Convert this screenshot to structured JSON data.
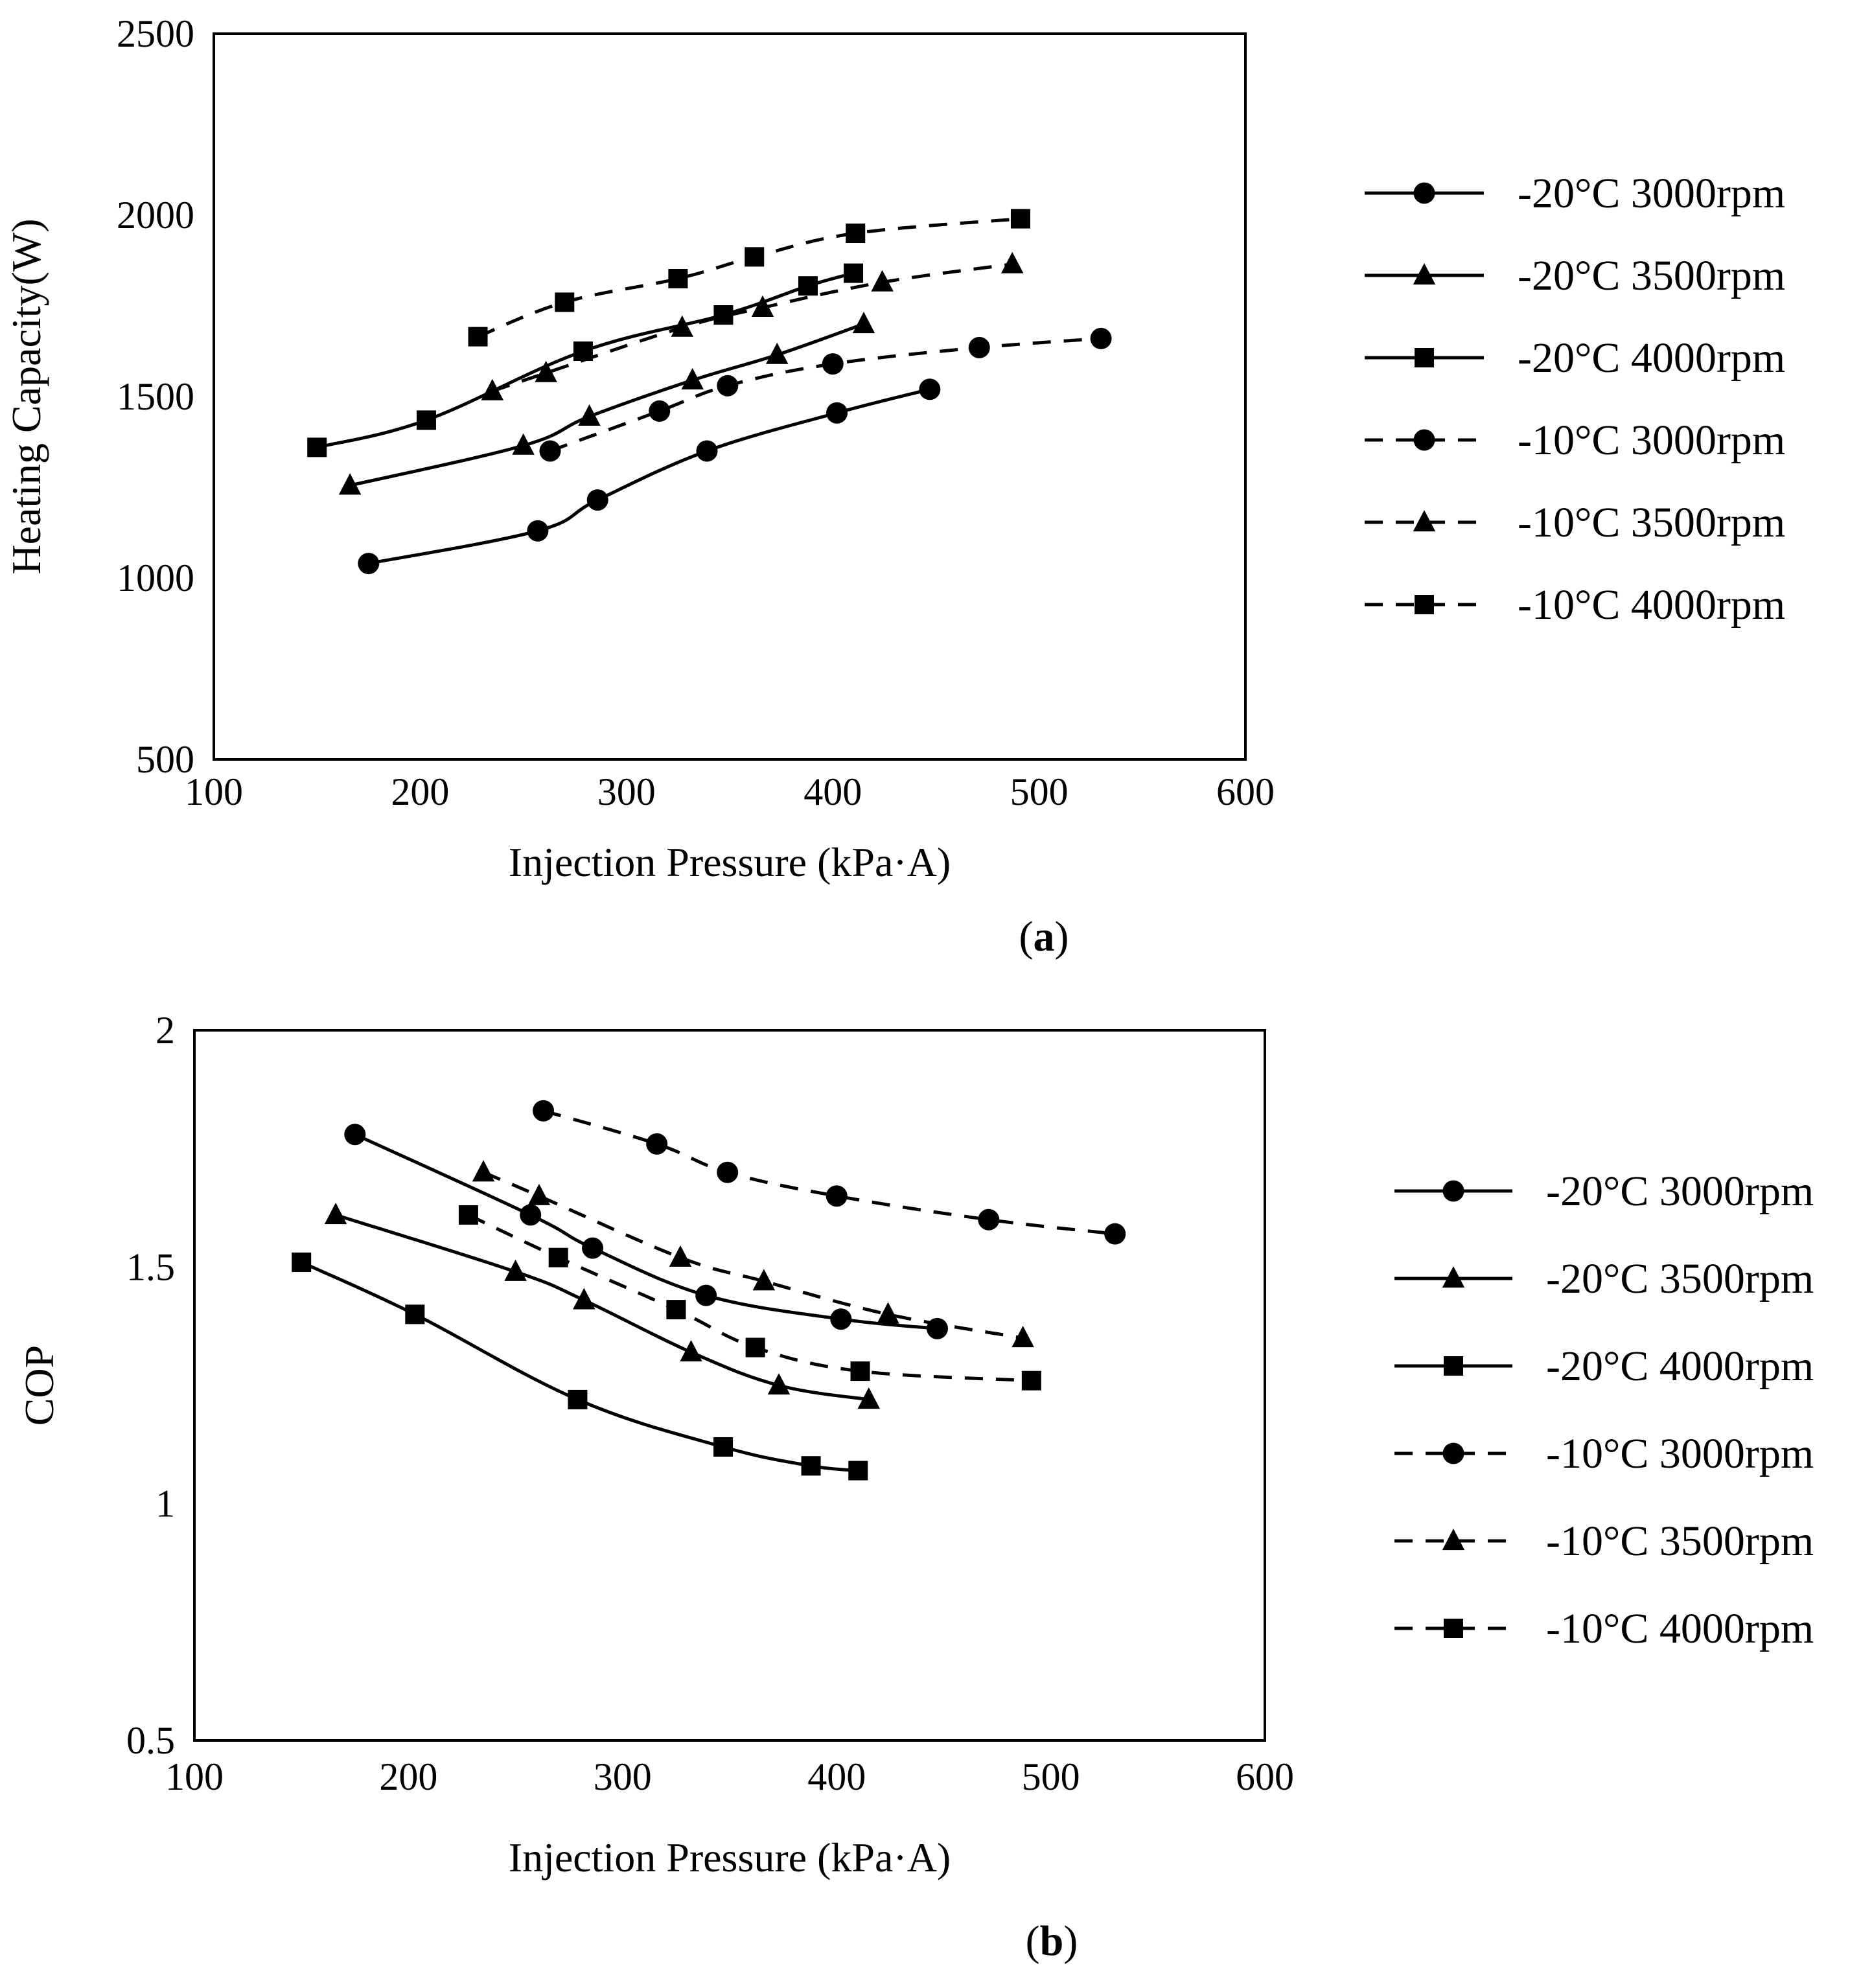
{
  "chart_data": [
    {
      "type": "line",
      "panel_label": "a",
      "xlabel": "Injection Pressure (kPa·A)",
      "ylabel": "Heating Capacity(W)",
      "xlim": [
        100,
        600
      ],
      "ylim": [
        500,
        2500
      ],
      "xticks": [
        100,
        200,
        300,
        400,
        500,
        600
      ],
      "yticks": [
        500,
        1000,
        1500,
        2000,
        2500
      ],
      "grid": false,
      "legend_position": "right",
      "series": [
        {
          "name": "-20°C 3000rpm",
          "line": "solid",
          "marker": "circle",
          "x": [
            175,
            257,
            286,
            339,
            402,
            447
          ],
          "y": [
            1040,
            1130,
            1215,
            1350,
            1455,
            1520
          ]
        },
        {
          "name": "-20°C 3500rpm",
          "line": "solid",
          "marker": "triangle",
          "x": [
            166,
            250,
            282,
            332,
            373,
            415
          ],
          "y": [
            1255,
            1365,
            1445,
            1545,
            1615,
            1700
          ]
        },
        {
          "name": "-20°C 4000rpm",
          "line": "solid",
          "marker": "square",
          "x": [
            150,
            203,
            279,
            347,
            388,
            410
          ],
          "y": [
            1360,
            1435,
            1625,
            1725,
            1805,
            1840
          ]
        },
        {
          "name": "-10°C 3000rpm",
          "line": "dashed",
          "marker": "circle",
          "x": [
            263,
            316,
            349,
            400,
            471,
            530
          ],
          "y": [
            1350,
            1460,
            1530,
            1590,
            1635,
            1660
          ]
        },
        {
          "name": "-10°C 3500rpm",
          "line": "dashed",
          "marker": "triangle",
          "x": [
            235,
            261,
            327,
            366,
            424,
            487
          ],
          "y": [
            1515,
            1565,
            1690,
            1745,
            1815,
            1865
          ]
        },
        {
          "name": "-10°C 4000rpm",
          "line": "dashed",
          "marker": "square",
          "x": [
            228,
            270,
            325,
            362,
            411,
            491
          ],
          "y": [
            1665,
            1760,
            1825,
            1885,
            1950,
            1990
          ]
        }
      ]
    },
    {
      "type": "line",
      "panel_label": "b",
      "xlabel": "Injection Pressure (kPa·A)",
      "ylabel": "COP",
      "xlim": [
        100,
        600
      ],
      "ylim": [
        0.5,
        2
      ],
      "xticks": [
        100,
        200,
        300,
        400,
        500,
        600
      ],
      "yticks": [
        0.5,
        1,
        1.5,
        2
      ],
      "ytick_labels": [
        "0.5",
        "1",
        "1.5",
        "2"
      ],
      "grid": false,
      "legend_position": "right",
      "series": [
        {
          "name": "-20°C 3000rpm",
          "line": "solid",
          "marker": "circle",
          "x": [
            175,
            257,
            286,
            339,
            402,
            447
          ],
          "y": [
            1.78,
            1.61,
            1.54,
            1.44,
            1.39,
            1.37
          ]
        },
        {
          "name": "-20°C 3500rpm",
          "line": "solid",
          "marker": "triangle",
          "x": [
            166,
            250,
            282,
            332,
            373,
            415
          ],
          "y": [
            1.61,
            1.49,
            1.43,
            1.32,
            1.25,
            1.22
          ]
        },
        {
          "name": "-20°C 4000rpm",
          "line": "solid",
          "marker": "square",
          "x": [
            150,
            203,
            279,
            347,
            388,
            410
          ],
          "y": [
            1.51,
            1.4,
            1.22,
            1.12,
            1.08,
            1.07
          ]
        },
        {
          "name": "-10°C 3000rpm",
          "line": "dashed",
          "marker": "circle",
          "x": [
            263,
            316,
            349,
            400,
            471,
            530
          ],
          "y": [
            1.83,
            1.76,
            1.7,
            1.65,
            1.6,
            1.57
          ]
        },
        {
          "name": "-10°C 3500rpm",
          "line": "dashed",
          "marker": "triangle",
          "x": [
            235,
            261,
            327,
            366,
            424,
            487
          ],
          "y": [
            1.7,
            1.65,
            1.52,
            1.47,
            1.4,
            1.35
          ]
        },
        {
          "name": "-10°C 4000rpm",
          "line": "dashed",
          "marker": "square",
          "x": [
            228,
            270,
            325,
            362,
            411,
            491
          ],
          "y": [
            1.61,
            1.52,
            1.41,
            1.33,
            1.28,
            1.26
          ]
        }
      ]
    }
  ]
}
